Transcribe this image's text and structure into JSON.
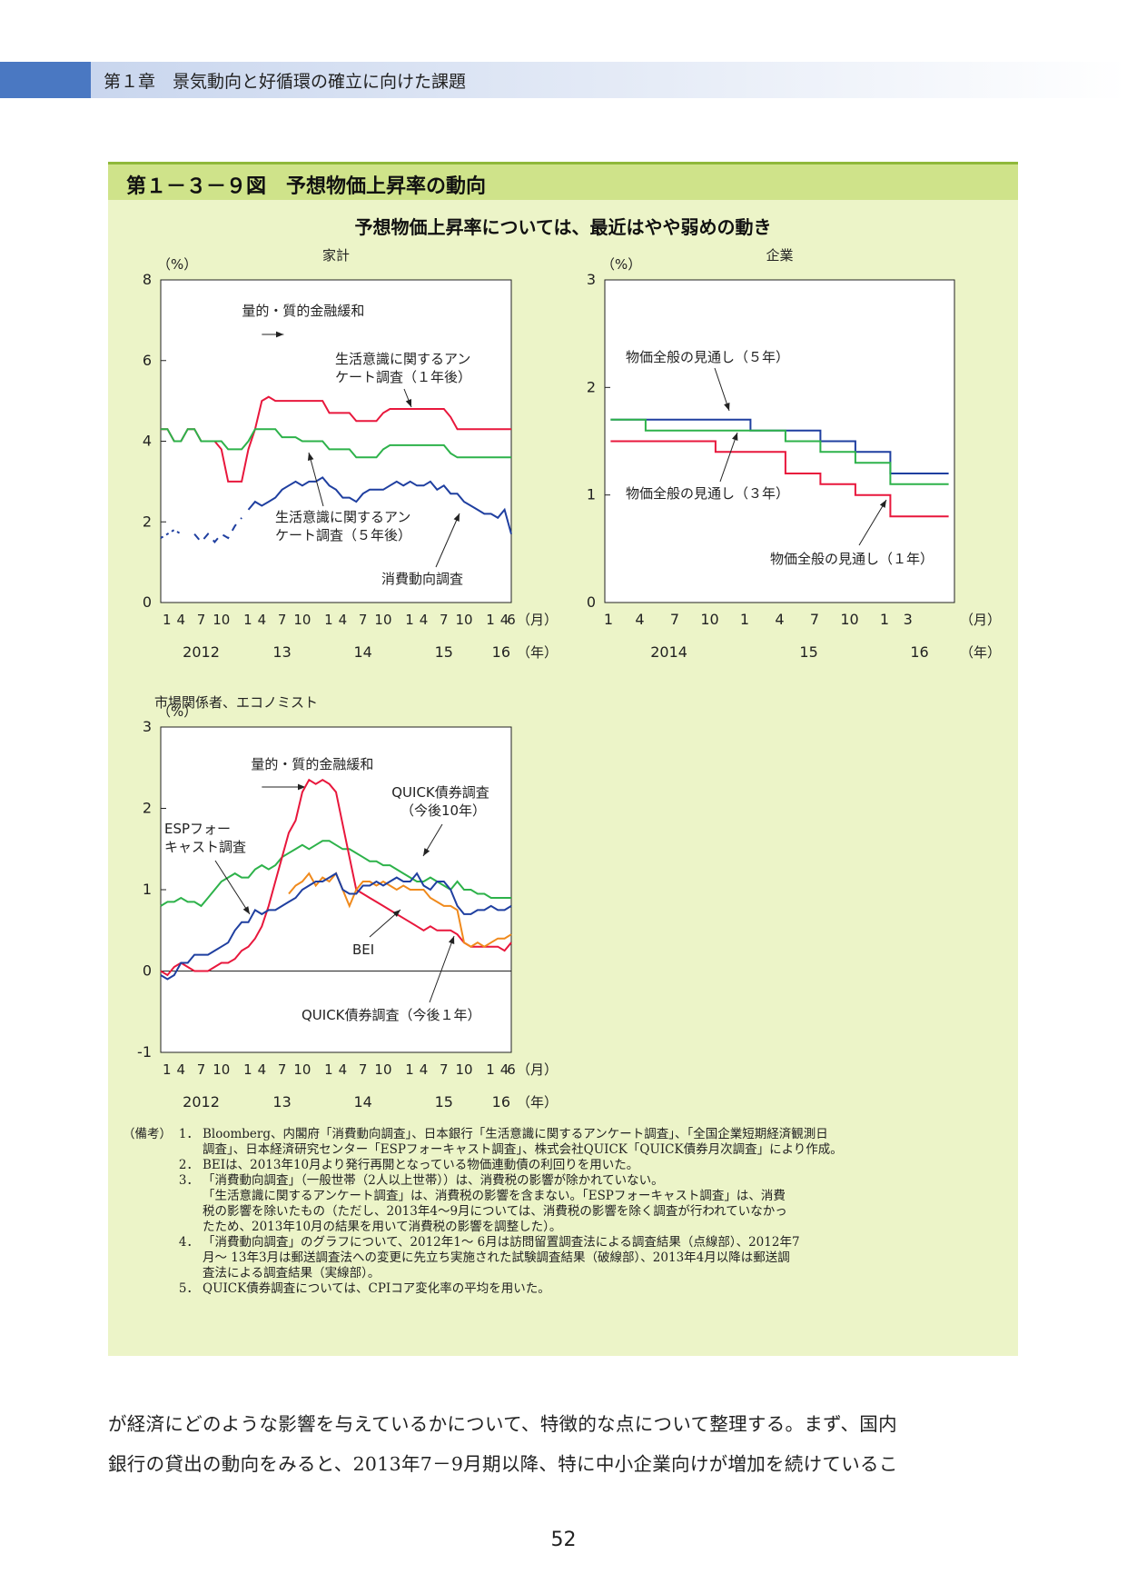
{
  "header": {
    "chapter": "第１章　景気動向と好循環の確立に向けた課題"
  },
  "figure": {
    "title": "第１－３－９図　予想物価上昇率の動向",
    "subtitle": "予想物価上昇率については、最近はやや弱めの動き"
  },
  "chart_data": [
    {
      "type": "line",
      "title": "家計",
      "ylabel": "（%）",
      "ylim": [
        0,
        8
      ],
      "yticks": [
        0,
        2,
        4,
        6,
        8
      ],
      "xlabel_month": "（月）",
      "xlabel_year": "（年）",
      "month_ticks": [
        "1",
        "4",
        "7",
        "10",
        "1",
        "4",
        "7",
        "10",
        "1",
        "4",
        "7",
        "10",
        "1",
        "4",
        "7",
        "10",
        "1",
        "4",
        "6"
      ],
      "year_labels": [
        "2012",
        "13",
        "14",
        "15",
        "16"
      ],
      "annotations": {
        "qqe": "量的・質的金融緩和",
        "s1a": "生活意識に関するアン",
        "s1b": "ケート調査（１年後）",
        "s5a": "生活意識に関するアン",
        "s5b": "ケート調査（５年後）",
        "cons": "消費動向調査"
      },
      "series": [
        {
          "color": "#e8173c",
          "values": [
            4.3,
            4.3,
            4.0,
            4.0,
            4.3,
            4.3,
            4.0,
            4.0,
            4.0,
            3.8,
            3.0,
            3.0,
            3.0,
            3.8,
            4.3,
            5.0,
            5.1,
            5.0,
            5.0,
            5.0,
            5.0,
            5.0,
            5.0,
            5.0,
            5.0,
            4.7,
            4.7,
            4.7,
            4.7,
            4.5,
            4.5,
            4.5,
            4.5,
            4.7,
            4.8,
            4.8,
            4.8,
            4.8,
            4.8,
            4.8,
            4.8,
            4.8,
            4.8,
            4.6,
            4.3,
            4.3,
            4.3,
            4.3,
            4.3,
            4.3,
            4.3,
            4.3,
            4.3
          ]
        },
        {
          "color": "#2db24a",
          "values": [
            4.3,
            4.3,
            4.0,
            4.0,
            4.3,
            4.3,
            4.0,
            4.0,
            4.0,
            4.0,
            3.8,
            3.8,
            3.8,
            4.0,
            4.3,
            4.3,
            4.3,
            4.3,
            4.1,
            4.1,
            4.1,
            4.0,
            4.0,
            4.0,
            4.0,
            3.8,
            3.8,
            3.8,
            3.8,
            3.6,
            3.6,
            3.6,
            3.6,
            3.8,
            3.9,
            3.9,
            3.9,
            3.9,
            3.9,
            3.9,
            3.9,
            3.9,
            3.9,
            3.7,
            3.6,
            3.6,
            3.6,
            3.6,
            3.6,
            3.6,
            3.6,
            3.6,
            3.6
          ]
        },
        {
          "color": "#1f3fa0",
          "values": [
            1.6,
            1.7,
            1.8,
            1.7,
            null,
            1.7,
            1.5,
            1.7,
            1.5,
            1.7,
            1.6,
            1.9,
            2.1,
            2.3,
            2.5,
            2.4,
            2.5,
            2.6,
            2.8,
            2.9,
            3.0,
            2.9,
            3.0,
            3.0,
            3.1,
            2.9,
            2.8,
            2.6,
            2.6,
            2.5,
            2.7,
            2.8,
            2.8,
            2.8,
            2.9,
            3.0,
            2.9,
            3.0,
            2.9,
            2.9,
            3.0,
            2.8,
            2.9,
            2.7,
            2.7,
            2.5,
            2.4,
            2.3,
            2.2,
            2.2,
            2.1,
            2.3,
            1.7
          ]
        }
      ],
      "data_start": "2012-01",
      "solid_from": "2013-04"
    },
    {
      "type": "line",
      "title": "企業",
      "ylabel": "（%）",
      "ylim": [
        0,
        3
      ],
      "yticks": [
        0,
        1,
        2,
        3
      ],
      "xlabel_month": "（月）",
      "xlabel_year": "（年）",
      "month_ticks": [
        "1",
        "4",
        "7",
        "10",
        "1",
        "4",
        "7",
        "10",
        "1",
        "3"
      ],
      "year_labels": [
        "2014",
        "15",
        "16"
      ],
      "annotations": {
        "f5": "物価全般の見通し（５年）",
        "f3": "物価全般の見通し（３年）",
        "f1": "物価全般の見通し（１年）"
      },
      "series": [
        {
          "name": "物価全般の見通し（５年）",
          "color": "#1f3fa0",
          "values": [
            1.7,
            1.7,
            1.7,
            1.7,
            1.6,
            1.6,
            1.5,
            1.4,
            1.2,
            1.2
          ]
        },
        {
          "name": "物価全般の見通し（３年）",
          "color": "#2db24a",
          "values": [
            1.7,
            1.6,
            1.6,
            1.6,
            1.6,
            1.5,
            1.4,
            1.3,
            1.1,
            1.1
          ]
        },
        {
          "name": "物価全般の見通し（１年）",
          "color": "#e8173c",
          "values": [
            1.5,
            1.5,
            1.5,
            1.4,
            1.4,
            1.2,
            1.1,
            1.0,
            0.8,
            0.8
          ]
        }
      ],
      "quarters": [
        "2014-03",
        "2014-06",
        "2014-09",
        "2014-12",
        "2015-03",
        "2015-06",
        "2015-09",
        "2015-12",
        "2016-03",
        "2016-06"
      ]
    },
    {
      "type": "line",
      "title": "市場関係者、エコノミスト",
      "ylabel": "（%）",
      "ylim": [
        -1,
        3
      ],
      "yticks": [
        -1,
        0,
        1,
        2,
        3
      ],
      "xlabel_month": "（月）",
      "xlabel_year": "（年）",
      "month_ticks": [
        "1",
        "4",
        "7",
        "10",
        "1",
        "4",
        "7",
        "10",
        "1",
        "4",
        "7",
        "10",
        "1",
        "4",
        "7",
        "10",
        "1",
        "4",
        "6"
      ],
      "year_labels": [
        "2012",
        "13",
        "14",
        "15",
        "16"
      ],
      "annotations": {
        "qqe": "量的・質的金融緩和",
        "q10a": "QUICK債券調査",
        "q10b": "（今後10年）",
        "espa": "ESPフォー",
        "espb": "キャスト調査",
        "bei": "BEI",
        "q1": "QUICK債券調査（今後１年）"
      },
      "series": [
        {
          "name": "QUICK債券調査（今後10年）",
          "color": "#2db24a",
          "values": [
            0.8,
            0.85,
            0.85,
            0.9,
            0.85,
            0.85,
            0.8,
            0.9,
            1.0,
            1.1,
            1.15,
            1.2,
            1.15,
            1.15,
            1.25,
            1.3,
            1.25,
            1.3,
            1.4,
            1.45,
            1.5,
            1.55,
            1.5,
            1.55,
            1.6,
            1.6,
            1.55,
            1.5,
            1.5,
            1.45,
            1.4,
            1.35,
            1.35,
            1.3,
            1.3,
            1.25,
            1.2,
            1.15,
            1.1,
            1.1,
            1.15,
            1.1,
            1.05,
            1.0,
            1.1,
            1.0,
            1.0,
            0.95,
            0.95,
            0.9,
            0.9,
            0.9,
            0.9
          ]
        },
        {
          "name": "QUICK債券調査（今後１年）",
          "color": "#e8173c",
          "values": [
            0.0,
            -0.05,
            0.05,
            0.1,
            0.05,
            0.0,
            0.0,
            0.0,
            0.05,
            0.1,
            0.1,
            0.15,
            0.25,
            0.3,
            0.4,
            0.55,
            0.8,
            1.1,
            1.4,
            1.7,
            1.85,
            2.2,
            2.35,
            2.3,
            2.35,
            2.3,
            2.2,
            1.8,
            1.4,
            1.0,
            0.95,
            0.9,
            0.85,
            0.8,
            0.75,
            0.7,
            0.65,
            0.6,
            0.55,
            0.5,
            0.55,
            0.5,
            0.5,
            0.5,
            0.45,
            0.35,
            0.3,
            0.3,
            0.3,
            0.3,
            0.3,
            0.25,
            0.35
          ]
        },
        {
          "name": "ESPフォーキャスト調査",
          "color": "#f08a1c",
          "values": [
            null,
            null,
            null,
            null,
            null,
            null,
            null,
            null,
            null,
            null,
            null,
            null,
            null,
            null,
            null,
            null,
            null,
            null,
            null,
            0.95,
            1.05,
            1.1,
            1.2,
            1.05,
            1.15,
            1.1,
            1.2,
            1.0,
            0.8,
            1.0,
            1.1,
            1.1,
            1.05,
            1.1,
            1.05,
            1.0,
            1.05,
            1.0,
            1.0,
            1.0,
            0.9,
            0.85,
            0.8,
            0.8,
            0.75,
            0.35,
            0.3,
            0.35,
            0.3,
            0.35,
            0.4,
            0.4,
            0.45
          ]
        },
        {
          "name": "BEI",
          "color": "#1f3fa0",
          "values": [
            -0.05,
            -0.1,
            -0.05,
            0.1,
            0.1,
            0.2,
            0.2,
            0.2,
            0.25,
            0.3,
            0.35,
            0.5,
            0.6,
            0.6,
            0.75,
            0.7,
            0.75,
            0.75,
            0.8,
            0.85,
            0.9,
            1.0,
            1.05,
            1.1,
            1.1,
            1.15,
            1.2,
            1.0,
            0.95,
            0.95,
            1.05,
            1.05,
            1.1,
            1.05,
            1.1,
            1.15,
            1.1,
            1.1,
            1.2,
            1.05,
            1.0,
            1.1,
            1.1,
            1.0,
            0.8,
            0.7,
            0.7,
            0.75,
            0.75,
            0.8,
            0.75,
            0.75,
            0.8
          ]
        }
      ],
      "data_start": "2012-01"
    }
  ],
  "notes": {
    "label": "（備考）",
    "items": [
      {
        "num": "1．",
        "lines": [
          "Bloomberg、内閣府「消費動向調査」、日本銀行「生活意識に関するアンケート調査」、「全国企業短期経済観測日",
          "調査」、日本経済研究センター「ESPフォーキャスト調査」、株式会社QUICK「QUICK債券月次調査」により作成。"
        ]
      },
      {
        "num": "2．",
        "lines": [
          "BEIは、2013年10月より発行再開となっている物価連動債の利回りを用いた。"
        ]
      },
      {
        "num": "3．",
        "lines": [
          "「消費動向調査」（一般世帯（2人以上世帯））は、消費税の影響が除かれていない。",
          "「生活意識に関するアンケート調査」は、消費税の影響を含まない。「ESPフォーキャスト調査」は、消費",
          "税の影響を除いたもの（ただし、2013年4～9月については、消費税の影響を除く調査が行われていなかっ",
          "たため、2013年10月の結果を用いて消費税の影響を調整した）。"
        ]
      },
      {
        "num": "4．",
        "lines": [
          "「消費動向調査」のグラフについて、2012年1～ 6月は訪問留置調査法による調査結果（点線部）、2012年7",
          "月～ 13年3月は郵送調査法への変更に先立ち実施された試験調査結果（破線部）、2013年4月以降は郵送調",
          "査法による調査結果（実線部）。"
        ]
      },
      {
        "num": "5．",
        "lines": [
          "QUICK債券調査については、CPIコア変化率の平均を用いた。"
        ]
      }
    ]
  },
  "body": {
    "line1": "が経済にどのような影響を与えているかについて、特徴的な点について整理する。まず、国内",
    "line2": "銀行の貸出の動向をみると、2013年7－9月期以降、特に中小企業向けが増加を続けているこ"
  },
  "page_number": "52"
}
